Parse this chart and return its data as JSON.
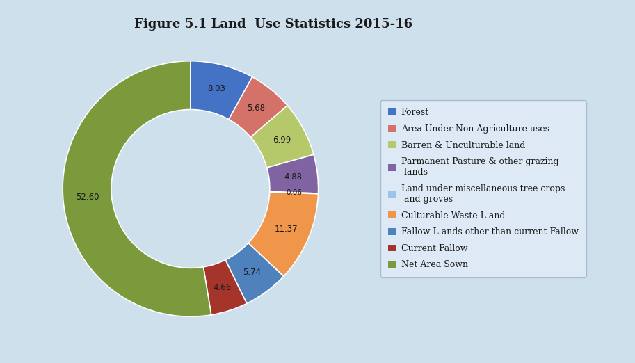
{
  "title": "Figure 5.1 Land  Use Statistics 2015-16",
  "background_color": "#cfe0ed",
  "inner_color": "#cfe0ed",
  "values": [
    8.03,
    5.68,
    6.99,
    4.88,
    0.06,
    11.37,
    5.74,
    4.66,
    52.6
  ],
  "colors": [
    "#4472c4",
    "#d4726a",
    "#b5c96a",
    "#8064a2",
    "#9dc3e6",
    "#f0964a",
    "#4f81bd",
    "#a5342a",
    "#7a9a3c"
  ],
  "wedge_labels": [
    "8.03",
    "5.68",
    "6.99",
    "4.88",
    "0.06",
    "11.37",
    "5.74",
    "4.66",
    "52.60"
  ],
  "legend_labels": [
    "Forest",
    "Area Under Non Agriculture uses",
    "Barren & Unculturable land",
    "Parmanent Pasture & other grazing\n lands",
    "Land under miscellaneous tree crops\n and groves",
    "Culturable Waste L and",
    "Fallow L ands other than current Fallow",
    "Current Fallow",
    "Net Area Sown"
  ],
  "legend_colors": [
    "#4472c4",
    "#d4726a",
    "#b5c96a",
    "#8064a2",
    "#9dc3e6",
    "#f0964a",
    "#4f81bd",
    "#a5342a",
    "#7a9a3c"
  ],
  "title_fontsize": 13,
  "label_fontsize": 9,
  "legend_fontsize": 9,
  "donut_width": 0.38
}
